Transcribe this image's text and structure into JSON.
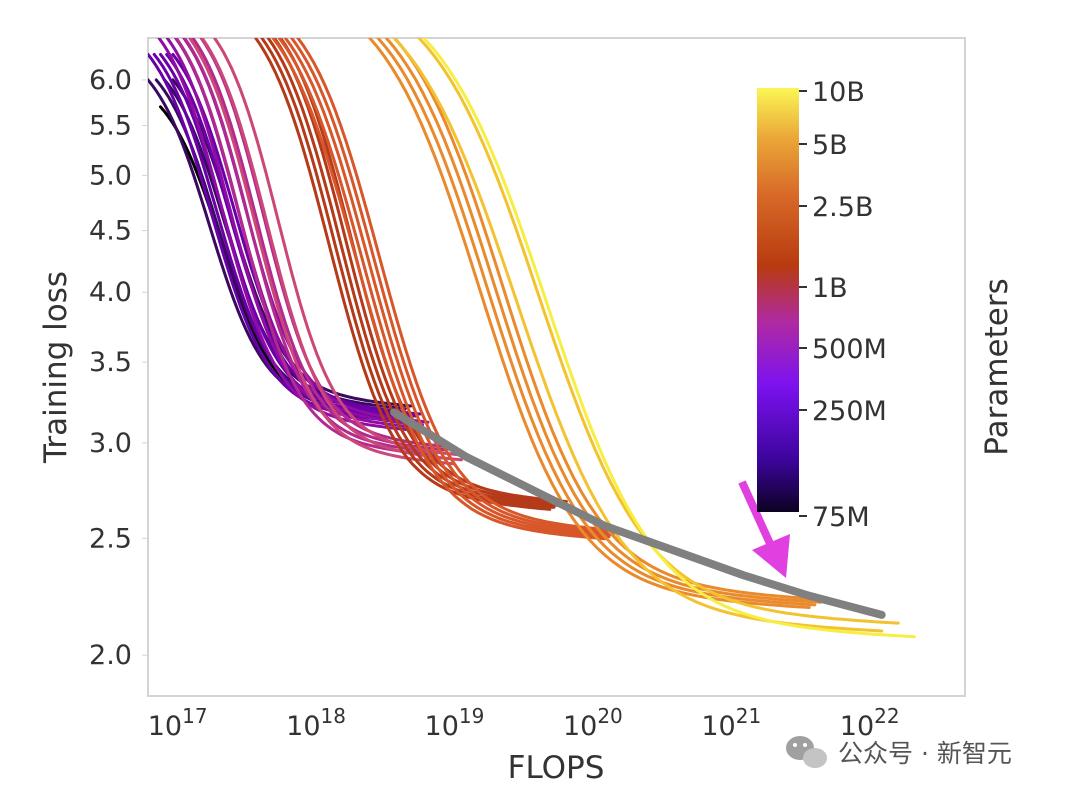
{
  "chart_data": {
    "type": "line",
    "xlabel": "FLOPS",
    "ylabel": "Training loss",
    "x_scale": "log",
    "y_scale": "log",
    "xlim": [
      5e+16,
      4e+22
    ],
    "ylim": [
      1.85,
      6.5
    ],
    "x_ticks": [
      {
        "value": 1e+17,
        "exp": "17"
      },
      {
        "value": 1e+18,
        "exp": "18"
      },
      {
        "value": 1e+19,
        "exp": "19"
      },
      {
        "value": 1e+20,
        "exp": "20"
      },
      {
        "value": 1e+21,
        "exp": "21"
      },
      {
        "value": 1e+22,
        "exp": "22"
      }
    ],
    "x_tick_base": "10",
    "y_ticks": [
      {
        "value": 6.0,
        "label": "6.0"
      },
      {
        "value": 5.5,
        "label": "5.5"
      },
      {
        "value": 5.0,
        "label": "5.0"
      },
      {
        "value": 4.5,
        "label": "4.5"
      },
      {
        "value": 4.0,
        "label": "4.0"
      },
      {
        "value": 3.5,
        "label": "3.5"
      },
      {
        "value": 3.0,
        "label": "3.0"
      },
      {
        "value": 2.5,
        "label": "2.5"
      },
      {
        "value": 2.0,
        "label": "2.0"
      }
    ],
    "colorbar": {
      "label": "Parameters",
      "colormap": "plasma-like",
      "ticks": [
        {
          "label": "10B"
        },
        {
          "label": "5B"
        },
        {
          "label": "2.5B"
        },
        {
          "label": "1B"
        },
        {
          "label": "500M"
        },
        {
          "label": "250M"
        },
        {
          "label": "75M"
        }
      ]
    },
    "series_groups": [
      {
        "color": "#000000",
        "count": 1,
        "x_start": 5e+16,
        "x_end": 3e+18,
        "y_start": 5.7,
        "y_end": 3.25
      },
      {
        "color": "#3a0a5e",
        "count": 4,
        "x_start": 5e+16,
        "x_end": 3e+18,
        "y_start": 6.0,
        "y_end": 3.3
      },
      {
        "color": "#6a00a8",
        "count": 5,
        "x_start": 5e+16,
        "x_end": 3.5e+18,
        "y_start": 6.3,
        "y_end": 3.25
      },
      {
        "color": "#8f0da4",
        "count": 4,
        "x_start": 6e+16,
        "x_end": 4e+18,
        "y_start": 6.5,
        "y_end": 3.2
      },
      {
        "color": "#b12a90",
        "count": 4,
        "x_start": 8e+16,
        "x_end": 6e+18,
        "y_start": 6.5,
        "y_end": 3.05
      },
      {
        "color": "#cc4778",
        "count": 3,
        "x_start": 1e+17,
        "x_end": 8e+18,
        "y_start": 6.5,
        "y_end": 3.0
      },
      {
        "color": "#b53a1a",
        "count": 5,
        "x_start": 3e+17,
        "x_end": 4e+19,
        "y_start": 6.5,
        "y_end": 2.75
      },
      {
        "color": "#d8572a",
        "count": 5,
        "x_start": 4e+17,
        "x_end": 1e+20,
        "y_start": 6.5,
        "y_end": 2.6
      },
      {
        "color": "#e98a2c",
        "count": 4,
        "x_start": 2e+18,
        "x_end": 3e+21,
        "y_start": 6.5,
        "y_end": 2.28
      },
      {
        "color": "#f2c230",
        "count": 2,
        "x_start": 3e+18,
        "x_end": 1e+22,
        "y_start": 6.5,
        "y_end": 2.18
      },
      {
        "color": "#f6ee40",
        "count": 1,
        "x_start": 4e+18,
        "x_end": 1.5e+22,
        "y_start": 6.5,
        "y_end": 2.14
      }
    ],
    "envelope": {
      "color": "#808080",
      "x": [
        3e+18,
        1e+19,
        1e+20,
        1e+21,
        3e+21,
        1e+22
      ],
      "y": [
        3.18,
        2.92,
        2.56,
        2.33,
        2.24,
        2.16
      ]
    },
    "annotation": {
      "type": "arrow",
      "color": "#e040e0"
    },
    "grid": false
  },
  "watermark": {
    "icon": "wechat-icon",
    "text": "公众号 · 新智元"
  }
}
